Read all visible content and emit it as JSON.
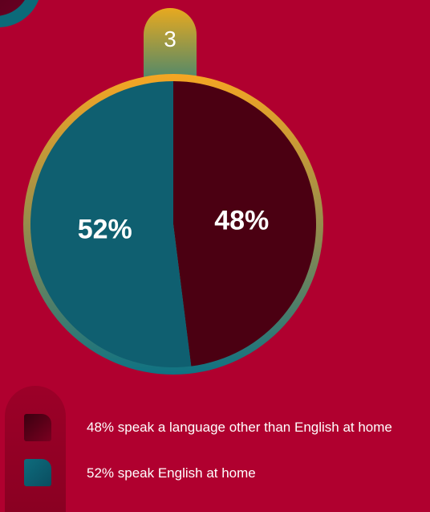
{
  "badge": {
    "number": "3"
  },
  "chart_data": {
    "type": "pie",
    "categories": [
      "speak a language other than English at home",
      "speak English at home"
    ],
    "values": [
      48,
      52
    ],
    "labels": [
      "48%",
      "52%"
    ],
    "colors": [
      "#4b0012",
      "#0f5f70"
    ],
    "title": "",
    "xlabel": "",
    "ylabel": ""
  },
  "legend": {
    "items": [
      {
        "label": "48% speak a language other than English at home",
        "color": "#4b0012"
      },
      {
        "label": "52% speak English at home",
        "color": "#0f5f70"
      }
    ]
  },
  "colors": {
    "background": "#b0002f",
    "ring_top": "#f5a623",
    "ring_bottom": "#0e7283"
  }
}
